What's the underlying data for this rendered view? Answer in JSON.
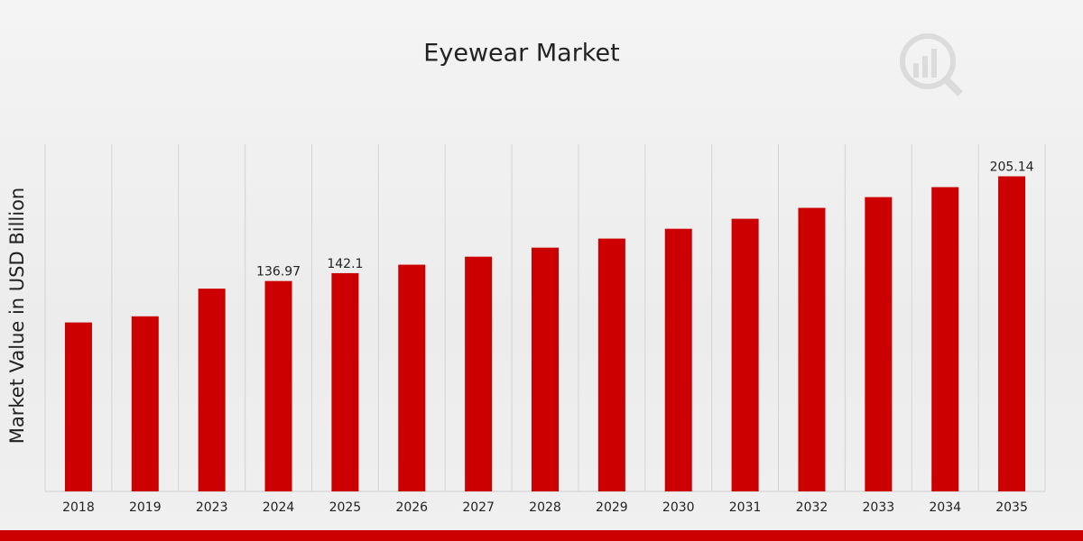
{
  "chart_data": {
    "type": "bar",
    "title": "Eyewear Market",
    "y_label": "Market Value in USD Billion",
    "categories": [
      "2018",
      "2019",
      "2023",
      "2024",
      "2025",
      "2026",
      "2027",
      "2028",
      "2029",
      "2030",
      "2031",
      "2032",
      "2033",
      "2034",
      "2035"
    ],
    "values": [
      110,
      114,
      132,
      136.97,
      142.1,
      147.6,
      152.8,
      158.7,
      164.6,
      171,
      177.5,
      184.6,
      191.6,
      198.1,
      205.14
    ],
    "value_labels": [
      null,
      null,
      null,
      "136.97",
      "142.1",
      null,
      null,
      null,
      null,
      null,
      null,
      null,
      null,
      null,
      "205.14"
    ],
    "color": "#cc0000",
    "ylim": [
      0,
      226
    ]
  }
}
